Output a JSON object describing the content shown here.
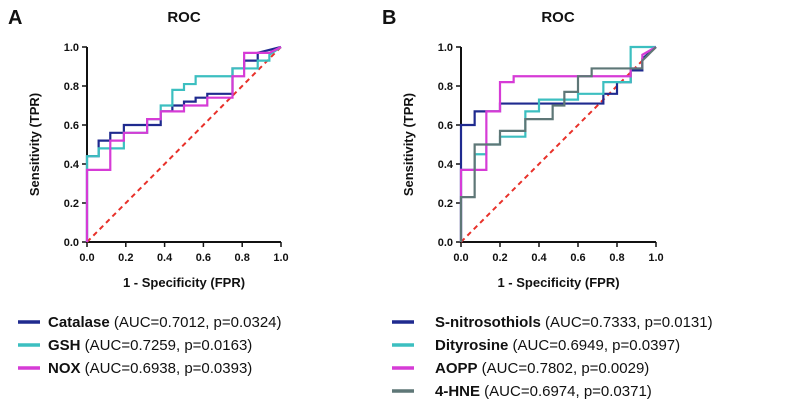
{
  "chart_data": [
    {
      "panel": "A",
      "type": "line",
      "title": "ROC",
      "xlabel": "1 - Specificity (FPR)",
      "ylabel": "Sensitivity (TPR)",
      "xlim": [
        0,
        1
      ],
      "ylim": [
        0,
        1
      ],
      "xticks": [
        "0.0",
        "0.2",
        "0.4",
        "0.6",
        "0.8",
        "1.0"
      ],
      "yticks": [
        "0.0",
        "0.2",
        "0.4",
        "0.6",
        "0.8",
        "1.0"
      ],
      "reference_line": {
        "x": [
          0,
          1
        ],
        "y": [
          0,
          1
        ],
        "color": "#e8312a",
        "style": "dashed"
      },
      "series": [
        {
          "name": "Catalase",
          "stat": "(AUC=0.7012, p=0.0324)",
          "color": "#1f2a8f",
          "x": [
            0,
            0,
            0.06,
            0.06,
            0.12,
            0.12,
            0.19,
            0.19,
            0.38,
            0.38,
            0.44,
            0.44,
            0.5,
            0.5,
            0.56,
            0.56,
            0.62,
            0.62,
            0.75,
            0.75,
            0.81,
            0.81,
            0.88,
            0.88,
            1
          ],
          "y": [
            0,
            0.44,
            0.44,
            0.52,
            0.52,
            0.56,
            0.56,
            0.6,
            0.6,
            0.67,
            0.67,
            0.7,
            0.7,
            0.72,
            0.72,
            0.74,
            0.74,
            0.76,
            0.76,
            0.89,
            0.89,
            0.93,
            0.93,
            0.97,
            1
          ]
        },
        {
          "name": "GSH",
          "stat": "(AUC=0.7259, p=0.0163)",
          "color": "#3cbfc0",
          "x": [
            0,
            0,
            0.06,
            0.06,
            0.19,
            0.19,
            0.31,
            0.31,
            0.38,
            0.38,
            0.44,
            0.44,
            0.5,
            0.5,
            0.56,
            0.56,
            0.62,
            0.62,
            0.75,
            0.75,
            0.88,
            0.88,
            0.94,
            0.94,
            1
          ],
          "y": [
            0,
            0.44,
            0.44,
            0.48,
            0.48,
            0.56,
            0.56,
            0.63,
            0.63,
            0.7,
            0.7,
            0.78,
            0.78,
            0.81,
            0.81,
            0.85,
            0.85,
            0.85,
            0.85,
            0.89,
            0.89,
            0.93,
            0.93,
            0.96,
            1
          ]
        },
        {
          "name": "NOX",
          "stat": "(AUC=0.6938, p=0.0393)",
          "color": "#d63bd6",
          "x": [
            0,
            0,
            0.12,
            0.12,
            0.19,
            0.19,
            0.31,
            0.31,
            0.38,
            0.38,
            0.5,
            0.5,
            0.62,
            0.62,
            0.75,
            0.75,
            0.81,
            0.81,
            0.94,
            0.94,
            1
          ],
          "y": [
            0,
            0.37,
            0.37,
            0.52,
            0.52,
            0.56,
            0.56,
            0.63,
            0.63,
            0.67,
            0.67,
            0.7,
            0.7,
            0.74,
            0.74,
            0.85,
            0.85,
            0.97,
            0.97,
            0.97,
            1
          ]
        }
      ]
    },
    {
      "panel": "B",
      "type": "line",
      "title": "ROC",
      "xlabel": "1 - Specificity (FPR)",
      "ylabel": "Sensitivity (TPR)",
      "xlim": [
        0,
        1
      ],
      "ylim": [
        0,
        1
      ],
      "xticks": [
        "0.0",
        "0.2",
        "0.4",
        "0.6",
        "0.8",
        "1.0"
      ],
      "yticks": [
        "0.0",
        "0.2",
        "0.4",
        "0.6",
        "0.8",
        "1.0"
      ],
      "reference_line": {
        "x": [
          0,
          1
        ],
        "y": [
          0,
          1
        ],
        "color": "#e8312a",
        "style": "dashed"
      },
      "series": [
        {
          "name": "S-nitrosothiols",
          "stat": "(AUC=0.7333, p=0.0131)",
          "color": "#1f2a8f",
          "x": [
            0,
            0,
            0.07,
            0.07,
            0.2,
            0.2,
            0.73,
            0.73,
            0.8,
            0.8,
            0.87,
            0.87,
            0.93,
            0.93,
            1
          ],
          "y": [
            0,
            0.6,
            0.6,
            0.67,
            0.67,
            0.71,
            0.71,
            0.76,
            0.76,
            0.82,
            0.82,
            0.88,
            0.88,
            0.94,
            1
          ]
        },
        {
          "name": "Dityrosine",
          "stat": "(AUC=0.6949, p=0.0397)",
          "color": "#3cbfc0",
          "x": [
            0,
            0,
            0.07,
            0.07,
            0.13,
            0.13,
            0.2,
            0.2,
            0.33,
            0.33,
            0.4,
            0.4,
            0.6,
            0.6,
            0.73,
            0.73,
            0.87,
            0.87,
            0.93,
            0.93,
            1
          ],
          "y": [
            0,
            0.37,
            0.37,
            0.45,
            0.45,
            0.5,
            0.5,
            0.54,
            0.54,
            0.67,
            0.67,
            0.73,
            0.73,
            0.76,
            0.76,
            0.82,
            0.82,
            1.0,
            1.0,
            1.0,
            1
          ]
        },
        {
          "name": "AOPP",
          "stat": "(AUC=0.7802, p=0.0029)",
          "color": "#d63bd6",
          "x": [
            0,
            0,
            0.13,
            0.13,
            0.2,
            0.2,
            0.27,
            0.27,
            0.4,
            0.4,
            0.8,
            0.8,
            0.87,
            0.87,
            0.93,
            0.93,
            1
          ],
          "y": [
            0,
            0.37,
            0.37,
            0.67,
            0.67,
            0.82,
            0.82,
            0.85,
            0.85,
            0.85,
            0.85,
            0.85,
            0.85,
            0.89,
            0.89,
            0.96,
            1
          ]
        },
        {
          "name": "4-HNE",
          "stat": "(AUC=0.6974, p=0.0371)",
          "color": "#5e7777",
          "x": [
            0,
            0,
            0.07,
            0.07,
            0.13,
            0.13,
            0.2,
            0.2,
            0.33,
            0.33,
            0.47,
            0.47,
            0.53,
            0.53,
            0.6,
            0.6,
            0.67,
            0.67,
            0.87,
            0.87,
            0.93,
            0.93,
            1
          ],
          "y": [
            0,
            0.23,
            0.23,
            0.5,
            0.5,
            0.5,
            0.5,
            0.57,
            0.57,
            0.63,
            0.63,
            0.7,
            0.7,
            0.77,
            0.77,
            0.85,
            0.85,
            0.89,
            0.89,
            0.89,
            0.89,
            0.93,
            1
          ]
        }
      ]
    }
  ]
}
